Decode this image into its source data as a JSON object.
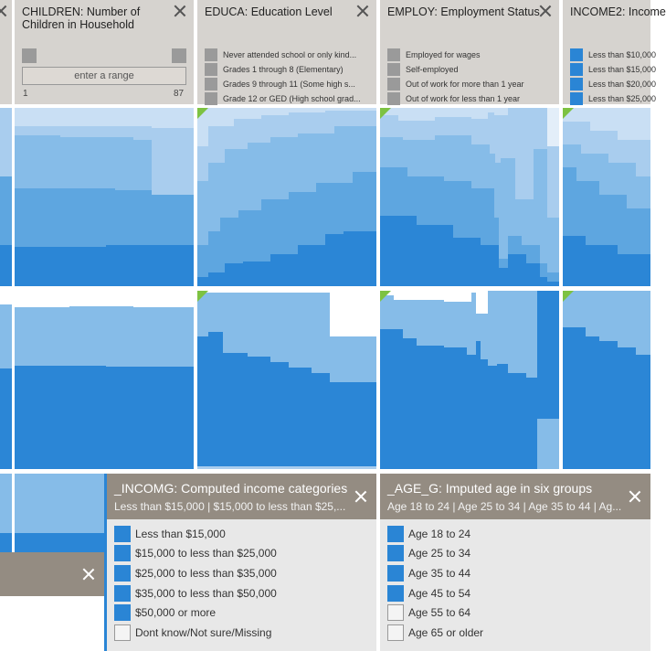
{
  "filters": {
    "children": {
      "title_line1": "CHILDREN: Number of",
      "title_line2": "Children in Household",
      "range_placeholder": "enter a range",
      "range_min": "1",
      "range_max": "87"
    },
    "educa": {
      "title": "EDUCA: Education Level",
      "categories": [
        "Never attended school or only kind...",
        "Grades 1 through 8 (Elementary)",
        "Grades 9 through 11 (Some high s...",
        "Grade 12 or GED (High school grad..."
      ]
    },
    "employ": {
      "title": "EMPLOY: Employment Status",
      "categories": [
        "Employed for wages",
        "Self-employed",
        "Out of work for more than 1 year",
        "Out of work for less than 1 year"
      ]
    },
    "income2": {
      "title": "INCOME2: Income",
      "categories": [
        "Less than $10,000",
        "Less than $15,000",
        "Less than $20,000",
        "Less than $25,000"
      ]
    }
  },
  "panels": {
    "incomg": {
      "title": "_INCOMG: Computed income categories",
      "subtitle": "Less than $15,000 | $15,000 to less than $25,...",
      "items": [
        {
          "label": "Less than $15,000",
          "checked": true
        },
        {
          "label": "$15,000 to less than $25,000",
          "checked": true
        },
        {
          "label": "$25,000 to less than $35,000",
          "checked": true
        },
        {
          "label": "$35,000 to less than $50,000",
          "checked": true
        },
        {
          "label": "$50,000 or more",
          "checked": true
        },
        {
          "label": "Dont know/Not sure/Missing",
          "checked": false
        }
      ]
    },
    "age_g": {
      "title": "_AGE_G: Imputed age in six groups",
      "subtitle": "Age 18 to 24 | Age 25 to 34 | Age 35 to 44 | Ag...",
      "items": [
        {
          "label": "Age 18 to 24",
          "checked": true
        },
        {
          "label": "Age 25 to 34",
          "checked": true
        },
        {
          "label": "Age 35 to 44",
          "checked": true
        },
        {
          "label": "Age 45 to 54",
          "checked": true
        },
        {
          "label": "Age 55 to 64",
          "checked": false
        },
        {
          "label": "Age 65 or older",
          "checked": false
        }
      ]
    }
  },
  "colors": {
    "header_bg": "#d6d3cf",
    "panel_header_bg": "#948c82",
    "swatch_on": "#2a85d5",
    "swatch_gray": "#9a9a9a",
    "filter_marker": "#7dc242",
    "layer_1": "#c9dff4",
    "layer_2": "#a9cdee",
    "layer_3": "#86bce8",
    "layer_4": "#5ea6e0",
    "layer_5": "#2b86d6"
  },
  "icons": {
    "close": "close-icon",
    "filter_marker": "active-filter-triangle-icon"
  },
  "chart_data": [
    {
      "type": "area",
      "row": 1,
      "column": "CHILDREN",
      "layers": 4,
      "values": [
        [
          0.2,
          0.4,
          0.6,
          0.2
        ],
        [
          0.2,
          0.38,
          0.59,
          0.21
        ],
        [
          0.2,
          0.37,
          0.58,
          0.22
        ],
        [
          0.2,
          0.36,
          0.54,
          0.25
        ],
        [
          0.2,
          0.35,
          0.52,
          0.26
        ]
      ]
    },
    {
      "type": "area",
      "row": 1,
      "column": "EDUCA",
      "layers": 5,
      "values": [
        [
          0.2,
          0.5,
          0.75,
          0.9,
          0.95
        ],
        [
          0.22,
          0.55,
          0.82,
          0.97,
          1.0
        ],
        [
          0.3,
          0.62,
          0.88,
          0.98,
          1.0
        ],
        [
          0.32,
          0.7,
          0.9,
          0.98,
          1.0
        ],
        [
          0.35,
          0.72,
          0.95,
          0.99,
          1.0
        ]
      ]
    },
    {
      "type": "area",
      "row": 1,
      "column": "EMPLOY",
      "layers": 5,
      "values": [
        [
          0.25,
          0.55,
          0.75,
          0.9,
          0.95
        ],
        [
          0.25,
          0.55,
          0.78,
          0.92,
          0.97
        ],
        [
          0.22,
          0.5,
          0.7,
          0.88,
          0.95
        ],
        [
          0.12,
          0.3,
          0.45,
          0.8,
          0.9
        ],
        [
          0.05,
          0.25,
          0.6,
          0.85,
          0.9
        ]
      ]
    },
    {
      "type": "area",
      "row": 2,
      "column": "CHILDREN",
      "layers": 3,
      "values": [
        [
          0.55,
          0.88,
          0.92
        ],
        [
          0.54,
          0.87,
          0.92
        ],
        [
          0.55,
          0.88,
          0.92
        ]
      ]
    },
    {
      "type": "area",
      "row": 2,
      "column": "EDUCA",
      "layers": 3,
      "values": [
        [
          0.75,
          0.96,
          1.0
        ],
        [
          0.62,
          0.9,
          1.0
        ],
        [
          0.58,
          0.8,
          0.85
        ],
        [
          0.5,
          0.72,
          0.75
        ]
      ]
    },
    {
      "type": "area",
      "row": 2,
      "column": "EMPLOY",
      "layers": 3,
      "values": [
        [
          0.78,
          0.98,
          1.0
        ],
        [
          0.6,
          0.82,
          0.82
        ],
        [
          0.57,
          0.72,
          0.75
        ],
        [
          0.5,
          0.66,
          0.7
        ],
        [
          0.52,
          1.0,
          1.0
        ]
      ]
    }
  ]
}
